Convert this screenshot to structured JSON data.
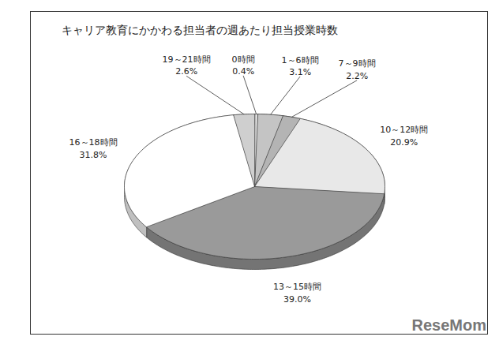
{
  "chart_data": {
    "type": "pie",
    "title": "キャリア教育にかかわる担当者の週あたり担当授業時数",
    "categories": [
      "0時間",
      "1～6時間",
      "7～9時間",
      "10～12時間",
      "13～15時間",
      "16～18時間",
      "19～21時間"
    ],
    "values": [
      0.4,
      3.1,
      2.2,
      20.9,
      39.0,
      31.8,
      2.6
    ],
    "value_labels": [
      "0.4%",
      "3.1%",
      "2.2%",
      "20.9%",
      "39.0%",
      "31.8%",
      "2.6%"
    ],
    "colors": [
      "#dddddd",
      "#c4c4c4",
      "#b4b4b4",
      "#e8e8e8",
      "#9a9a9a",
      "#ffffff",
      "#cfcfcf"
    ],
    "data_labels": true,
    "annotations": [
      "ReseMom"
    ]
  }
}
